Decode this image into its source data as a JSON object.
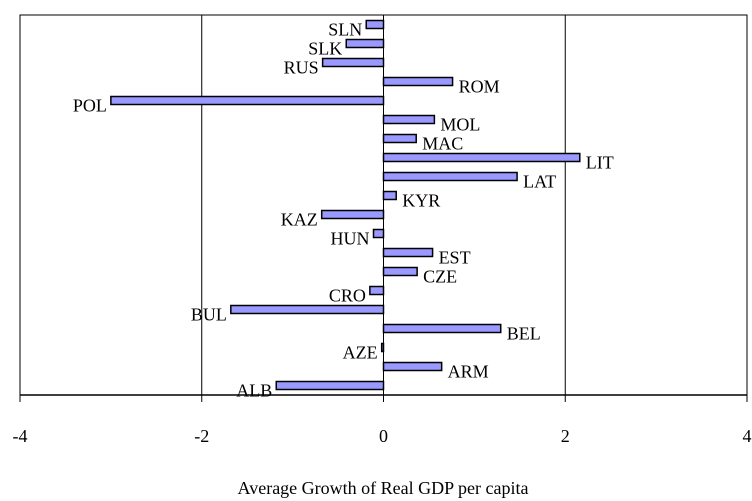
{
  "chart_data": {
    "type": "barh",
    "x_label": "Average Growth of Real GDP per capita",
    "categories": [
      "ALB",
      "ARM",
      "AZE",
      "BEL",
      "BUL",
      "CRO",
      "CZE",
      "EST",
      "HUN",
      "KAZ",
      "KYR",
      "LAT",
      "LIT",
      "MAC",
      "MOL",
      "POL",
      "ROM",
      "RUS",
      "SLK",
      "SLN"
    ],
    "values": [
      -1.18,
      0.64,
      -0.02,
      1.29,
      -1.68,
      -0.15,
      0.37,
      0.54,
      -0.11,
      -0.68,
      0.14,
      1.47,
      2.16,
      0.36,
      0.56,
      -3.0,
      0.76,
      -0.67,
      -0.41,
      -0.19
    ],
    "color": "#9999ff",
    "xlim": [
      -4,
      4
    ],
    "xticks": [
      -4,
      -2,
      0,
      2,
      4
    ],
    "grid": true
  }
}
